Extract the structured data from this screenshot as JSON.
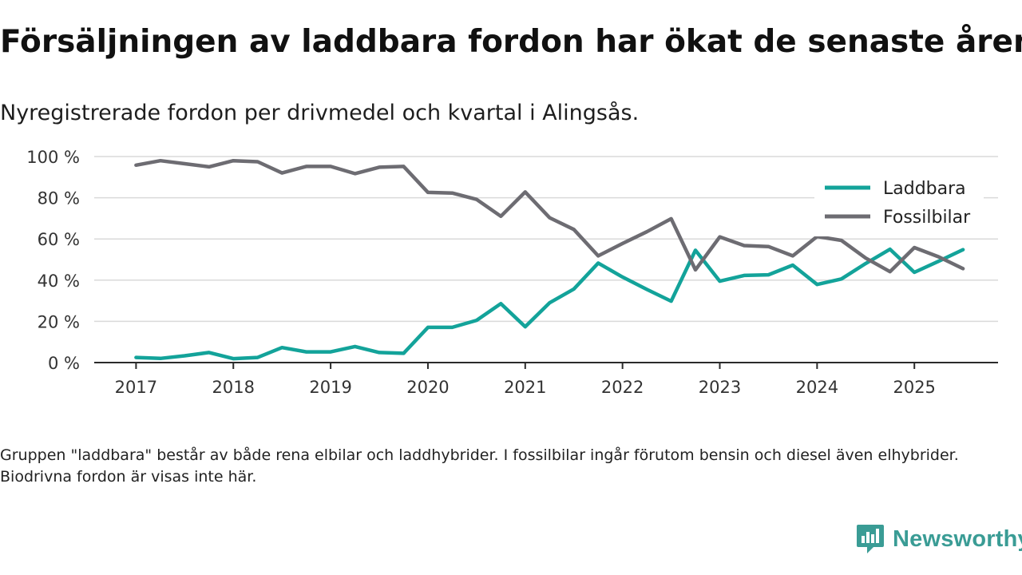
{
  "title": "Försäljningen av laddbara fordon har ökat de senaste åren",
  "subtitle": "Nyregistrerade fordon per drivmedel och kvartal i Alingsås.",
  "footnote": "Gruppen \"laddbara\" består av både rena elbilar och laddhybrider. I fossilbilar ingår förutom bensin och diesel även elhybrider. Biodrivna fordon är visas inte här.",
  "brand": {
    "name": "Newsworthy",
    "icon": "newsworthy-logo-icon",
    "color": "#3a9c95"
  },
  "chart_data": {
    "type": "line",
    "title": "Försäljningen av laddbara fordon har ökat de senaste åren",
    "subtitle": "Nyregistrerade fordon per drivmedel och kvartal i Alingsås.",
    "xlabel": "",
    "ylabel": "",
    "ylim": [
      0,
      100
    ],
    "xlim": [
      2016.57,
      2025.86
    ],
    "yticks": [
      0,
      20,
      40,
      60,
      80,
      100
    ],
    "ytick_labels": [
      "0 %",
      "20 %",
      "40 %",
      "60 %",
      "80 %",
      "100 %"
    ],
    "xticks": [
      2017,
      2018,
      2019,
      2020,
      2021,
      2022,
      2023,
      2024,
      2025
    ],
    "xtick_labels": [
      "2017",
      "2018",
      "2019",
      "2020",
      "2021",
      "2022",
      "2023",
      "2024",
      "2025"
    ],
    "grid": true,
    "legend_position": "top-right",
    "x": [
      2017,
      2017.25,
      2017.5,
      2017.75,
      2018,
      2018.25,
      2018.5,
      2018.75,
      2019,
      2019.25,
      2019.5,
      2019.75,
      2020,
      2020.25,
      2020.5,
      2020.75,
      2021,
      2021.25,
      2021.5,
      2021.75,
      2022,
      2022.25,
      2022.5,
      2022.75,
      2023,
      2023.25,
      2023.5,
      2023.75,
      2024,
      2024.25,
      2024.5,
      2024.75,
      2025,
      2025.25,
      2025.5
    ],
    "series": [
      {
        "name": "Laddbara",
        "color": "#13a39a",
        "values": [
          2.5,
          2,
          3.3,
          4.9,
          1.9,
          2.5,
          7.3,
          5.2,
          5.2,
          7.8,
          4.9,
          4.5,
          17.1,
          17.1,
          20.5,
          28.6,
          17.4,
          29,
          35.7,
          48.3,
          41.5,
          35.5,
          29.8,
          54.5,
          39.5,
          42.3,
          42.6,
          47.3,
          37.9,
          40.6,
          48.1,
          55,
          43.8,
          49.2,
          54.8
        ]
      },
      {
        "name": "Fossilbilar",
        "color": "#6d6c72",
        "values": [
          95.8,
          98,
          96.5,
          95,
          98,
          97.5,
          92,
          95.2,
          95.2,
          91.7,
          94.8,
          95.2,
          82.6,
          82.3,
          79.2,
          71,
          82.8,
          70.3,
          64.6,
          51.8,
          57.8,
          63.5,
          69.8,
          45,
          61,
          56.8,
          56.3,
          51.8,
          61.2,
          59.3,
          50.7,
          44.1,
          55.8,
          51.3,
          45.6
        ]
      }
    ]
  }
}
